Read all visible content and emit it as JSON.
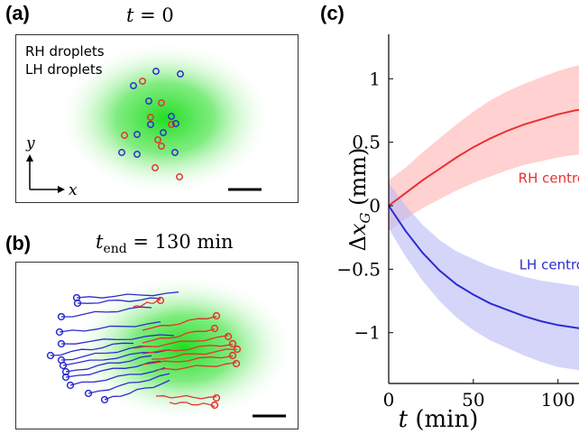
{
  "panel_a": {
    "label": "(a)",
    "title_var": "t",
    "title_eq": " = 0",
    "legend_rh": "RH droplets",
    "legend_lh": "LH droplets",
    "axis_x": "x",
    "axis_y": "y",
    "rh_color": "#e8312f",
    "lh_color": "#2c2ccf"
  },
  "panel_b": {
    "label": "(b)",
    "title_var": "t",
    "title_sub": "end",
    "title_eq": " = 130 min"
  },
  "panel_c": {
    "label": "(c)"
  },
  "chart_data": {
    "type": "line",
    "title": "",
    "xlabel": "t (min)",
    "ylabel": "Δx_G (mm)",
    "xlim": [
      0,
      130
    ],
    "ylim": [
      -1.4,
      1.35
    ],
    "xticks": [
      0,
      50,
      100
    ],
    "xtick_labels": [
      "0",
      "50",
      "100"
    ],
    "yticks": [
      -1,
      -0.5,
      0,
      0.5,
      1
    ],
    "ytick_labels": [
      "−1",
      "−0.5",
      "0",
      "0.5",
      "1"
    ],
    "annotations": [
      {
        "text": "RH centroid",
        "x": 100,
        "y": 0.18,
        "color": "#e8312f"
      },
      {
        "text": "LH centroid",
        "x": 100,
        "y": -0.5,
        "color": "#2c2ccf"
      }
    ],
    "series": [
      {
        "name": "RH centroid",
        "color": "#e8312f",
        "band_color": "#ffb3b3",
        "x": [
          0,
          10,
          20,
          30,
          40,
          50,
          60,
          70,
          80,
          90,
          100,
          110,
          120,
          130
        ],
        "y": [
          0,
          0.1,
          0.2,
          0.29,
          0.38,
          0.46,
          0.53,
          0.59,
          0.64,
          0.68,
          0.72,
          0.75,
          0.77,
          0.79
        ],
        "band_halfwidth": [
          0.2,
          0.2,
          0.22,
          0.24,
          0.26,
          0.28,
          0.3,
          0.31,
          0.32,
          0.33,
          0.34,
          0.35,
          0.35,
          0.36
        ]
      },
      {
        "name": "LH centroid",
        "color": "#2c2ccf",
        "band_color": "#b7b9f5",
        "x": [
          0,
          10,
          20,
          30,
          40,
          50,
          60,
          70,
          80,
          90,
          100,
          110,
          120,
          130
        ],
        "y": [
          0,
          -0.2,
          -0.37,
          -0.51,
          -0.62,
          -0.7,
          -0.77,
          -0.82,
          -0.87,
          -0.91,
          -0.94,
          -0.96,
          -0.98,
          -1.0
        ],
        "band_halfwidth": [
          0.18,
          0.2,
          0.22,
          0.24,
          0.26,
          0.28,
          0.29,
          0.3,
          0.31,
          0.32,
          0.33,
          0.33,
          0.34,
          0.34
        ]
      }
    ]
  }
}
